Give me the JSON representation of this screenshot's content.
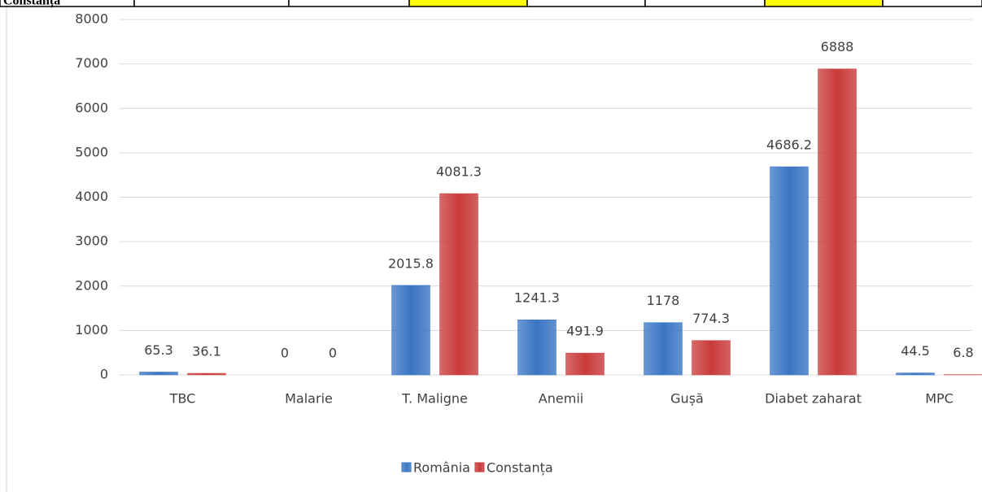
{
  "table_row": {
    "cells": [
      "Constanța",
      null,
      null,
      null,
      null,
      null,
      null,
      null
    ]
  },
  "chart_data": {
    "type": "bar",
    "categories": [
      "TBC",
      "Malarie",
      "T. Maligne",
      "Anemii",
      "Gușă",
      "Diabet zaharat",
      "MPC"
    ],
    "series": [
      {
        "name": "România",
        "color": "#3a75c4",
        "values": [
          65.3,
          0,
          2015.8,
          1241.3,
          1178,
          4686.2,
          44.5
        ]
      },
      {
        "name": "Constanța",
        "color": "#c93a3a",
        "values": [
          36.1,
          0,
          4081.3,
          491.9,
          774.3,
          6888,
          6.8
        ]
      }
    ],
    "ylim": [
      0,
      8000
    ],
    "yticks": [
      0,
      1000,
      2000,
      3000,
      4000,
      5000,
      6000,
      7000,
      8000
    ],
    "grid": true,
    "legend": "bottom"
  }
}
